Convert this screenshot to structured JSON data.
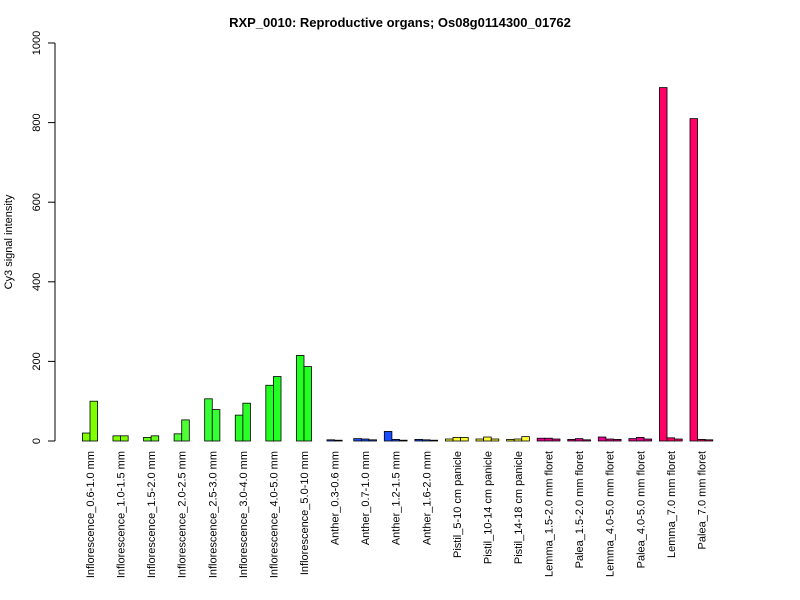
{
  "chart_data": {
    "type": "bar",
    "title": "RXP_0010: Reproductive organs; Os08g0114300_01762",
    "xlabel": "",
    "ylabel": "Cy3 signal intensity",
    "ylim": [
      0,
      1000
    ],
    "yticks": [
      "0",
      "200",
      "400",
      "600",
      "800",
      "1000"
    ],
    "grid": false,
    "legend": "none",
    "categories": [
      "Inflorescence_0.6-1.0 mm",
      "Inflorescence_1.0-1.5 mm",
      "Inflorescence_1.5-2.0 mm",
      "Inflorescence_2.0-2.5 mm",
      "Inflorescence_2.5-3.0 mm",
      "Inflorescence_3.0-4.0 mm",
      "Inflorescence_4.0-5.0 mm",
      "Inflorescence_5.0-10 mm",
      "Anther_0.3-0.6 mm",
      "Anther_0.7-1.0 mm",
      "Anther_1.2-1.5 mm",
      "Anther_1.6-2.0 mm",
      "Pistil_5-10 cm panicle",
      "Pistil_10-14 cm panicle",
      "Pistil_14-18 cm panicle",
      "Lemma_1.5-2.0 mm floret",
      "Palea_1.5-2.0 mm floret",
      "Lemma_4.0-5.0 mm floret",
      "Palea_4.0-5.0 mm floret",
      "Lemma_7.0 mm floret",
      "Palea_7.0 mm floret"
    ],
    "groups": [
      {
        "values": [
          20,
          100
        ],
        "color": "#7fff00"
      },
      {
        "values": [
          13,
          13
        ],
        "color": "#7fff00"
      },
      {
        "values": [
          9,
          13
        ],
        "color": "#66ff1a"
      },
      {
        "values": [
          18,
          53
        ],
        "color": "#4dff33"
      },
      {
        "values": [
          106,
          79
        ],
        "color": "#33ff33"
      },
      {
        "values": [
          65,
          95
        ],
        "color": "#2aff2a"
      },
      {
        "values": [
          140,
          162
        ],
        "color": "#22ff22"
      },
      {
        "values": [
          215,
          187
        ],
        "color": "#22ff22"
      },
      {
        "values": [
          3,
          2
        ],
        "color": "#1a4dff"
      },
      {
        "values": [
          6,
          5,
          3
        ],
        "color": "#1a4dff"
      },
      {
        "values": [
          24,
          4,
          2
        ],
        "color": "#1a4dff"
      },
      {
        "values": [
          4,
          3,
          2
        ],
        "color": "#1a4dff"
      },
      {
        "values": [
          5,
          9,
          9
        ],
        "color": "#ffff33"
      },
      {
        "values": [
          5,
          10,
          5
        ],
        "color": "#ffff33"
      },
      {
        "values": [
          4,
          5,
          11
        ],
        "color": "#ffff33"
      },
      {
        "values": [
          7,
          7,
          5
        ],
        "color": "#e6008a"
      },
      {
        "values": [
          4,
          6,
          3
        ],
        "color": "#e6008a"
      },
      {
        "values": [
          10,
          5,
          4
        ],
        "color": "#e6008a"
      },
      {
        "values": [
          6,
          9,
          5
        ],
        "color": "#e6008a"
      },
      {
        "values": [
          888,
          8,
          5
        ],
        "color": "#ff0066"
      },
      {
        "values": [
          810,
          4,
          3
        ],
        "color": "#ff0066"
      }
    ]
  }
}
